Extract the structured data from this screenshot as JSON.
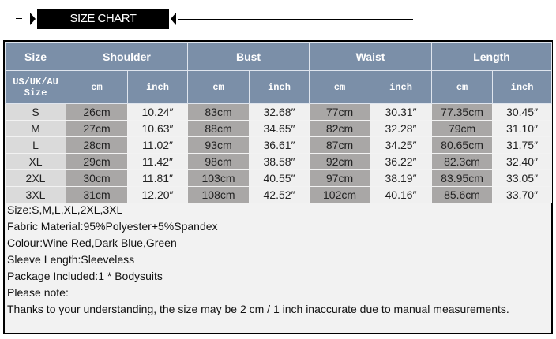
{
  "title": "SIZE CHART",
  "table": {
    "groups": [
      "Size",
      "Shoulder",
      "Bust",
      "Waist",
      "Length"
    ],
    "size_sub": "US/UK/AU Size",
    "unit_cm": "cm",
    "unit_inch": "inch",
    "rows": [
      [
        "S",
        "26cm",
        "10.24″",
        "83cm",
        "32.68″",
        "77cm",
        "30.31″",
        "77.35cm",
        "30.45″"
      ],
      [
        "M",
        "27cm",
        "10.63″",
        "88cm",
        "34.65″",
        "82cm",
        "32.28″",
        "79cm",
        "31.10″"
      ],
      [
        "L",
        "28cm",
        "11.02″",
        "93cm",
        "36.61″",
        "87cm",
        "34.25″",
        "80.65cm",
        "31.75″"
      ],
      [
        "XL",
        "29cm",
        "11.42″",
        "98cm",
        "38.58″",
        "92cm",
        "36.22″",
        "82.3cm",
        "32.40″"
      ],
      [
        "2XL",
        "30cm",
        "11.81″",
        "103cm",
        "40.55″",
        "97cm",
        "38.19″",
        "83.95cm",
        "33.05″"
      ],
      [
        "3XL",
        "31cm",
        "12.20″",
        "108cm",
        "42.52″",
        "102cm",
        "40.16″",
        "85.6cm",
        "33.70″"
      ]
    ]
  },
  "notes": [
    "Size:S,M,L,XL,2XL,3XL",
    "Fabric Material:95%Polyester+5%Spandex",
    "Colour:Wine Red,Dark Blue,Green",
    "Sleeve Length:Sleeveless",
    "Package Included:1 * Bodysuits",
    "Please note:",
    "Thanks to your understanding, the size may be 2 cm / 1 inch inaccurate due to manual measurements."
  ],
  "colors": {
    "header": "#7b8fa8",
    "cm_cell": "#a9a7a6",
    "inch_cell": "#f0f0f0"
  }
}
